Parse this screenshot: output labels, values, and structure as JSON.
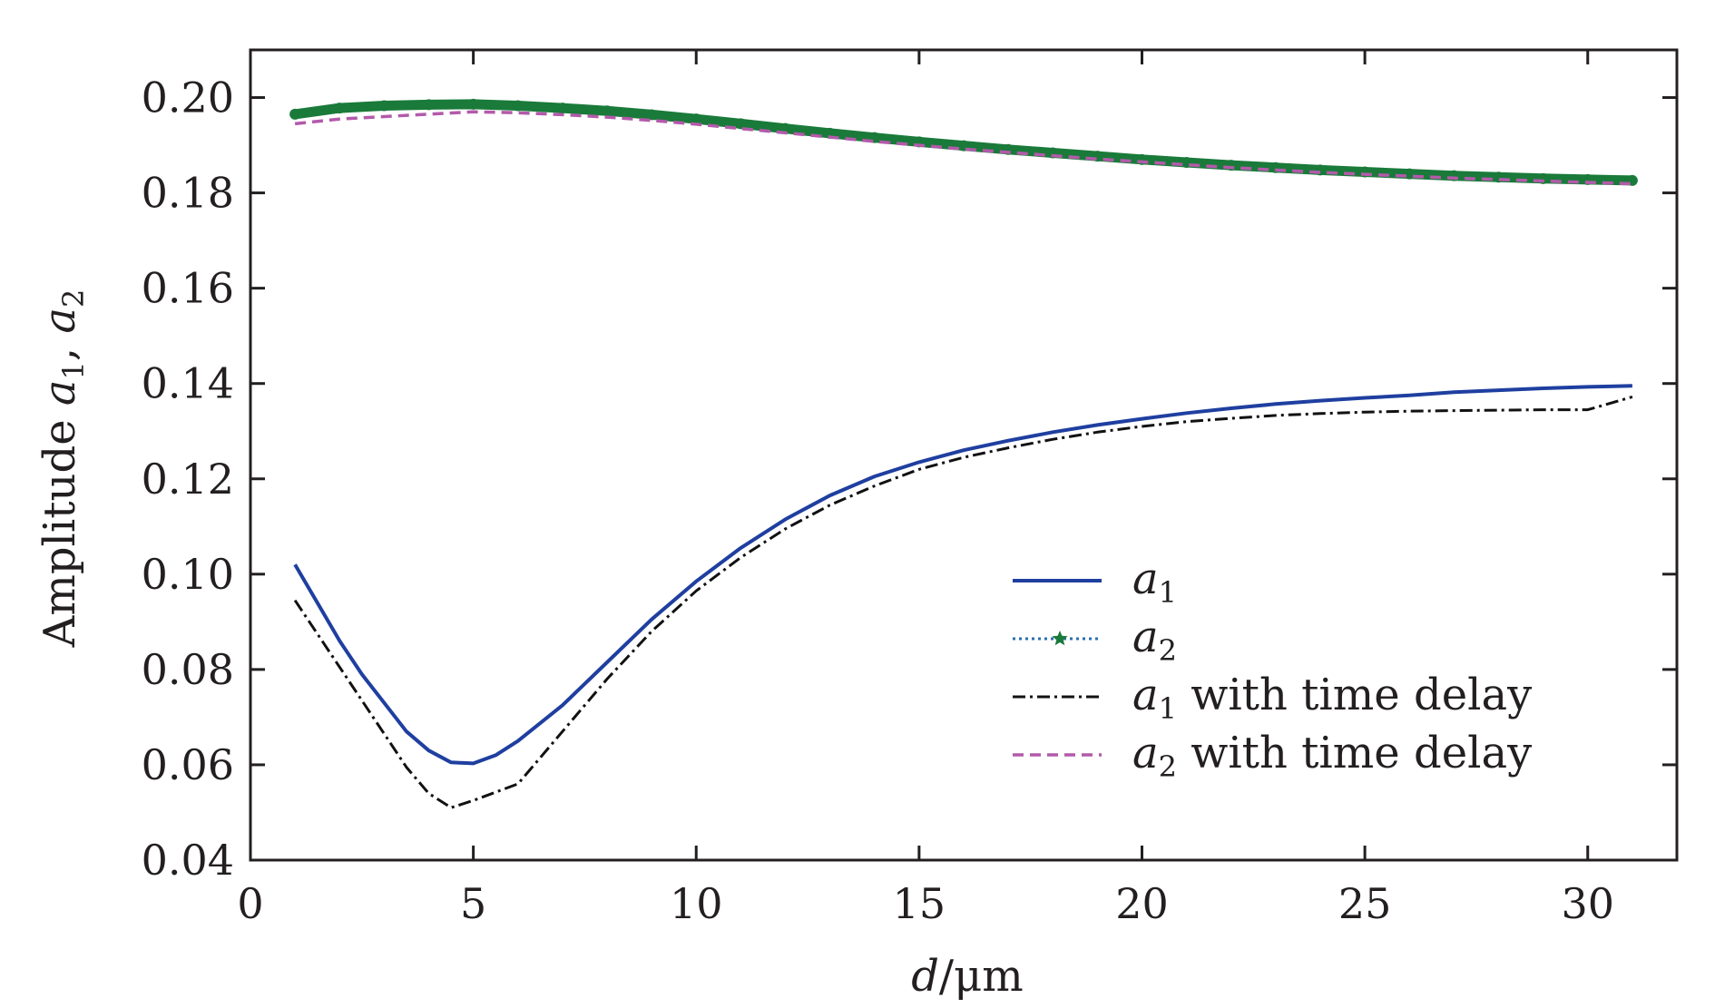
{
  "chart_data": {
    "type": "line",
    "xlabel": {
      "var": "d",
      "sep": "/",
      "unit": "μm"
    },
    "ylabel": {
      "prefix": "Amplitude ",
      "v1": "a",
      "s1": "1",
      "sep": ", ",
      "v2": "a",
      "s2": "2"
    },
    "xlim": [
      0,
      32
    ],
    "ylim": [
      0.04,
      0.21
    ],
    "xticks": [
      0,
      5,
      10,
      15,
      20,
      25,
      30
    ],
    "xtick_labels": [
      "0",
      "5",
      "10",
      "15",
      "20",
      "25",
      "30"
    ],
    "yticks": [
      0.04,
      0.06,
      0.08,
      0.1,
      0.12,
      0.14,
      0.16,
      0.18,
      0.2
    ],
    "ytick_labels": [
      "0.04",
      "0.06",
      "0.08",
      "0.10",
      "0.12",
      "0.14",
      "0.16",
      "0.18",
      "0.20"
    ],
    "grid": false,
    "legend_position": "lower-right",
    "series": [
      {
        "key": "a1",
        "legend": {
          "var": "a",
          "sub": "1",
          "suffix": ""
        },
        "color": "#1f3fa0",
        "style": "solid",
        "x": [
          1,
          1.5,
          2,
          2.5,
          3,
          3.5,
          4,
          4.5,
          5,
          5.5,
          6,
          7,
          8,
          9,
          10,
          11,
          12,
          13,
          14,
          15,
          16,
          17,
          18,
          19,
          20,
          21,
          22,
          23,
          24,
          25,
          26,
          27,
          28,
          29,
          30,
          31
        ],
        "y": [
          0.102,
          0.094,
          0.086,
          0.079,
          0.073,
          0.067,
          0.063,
          0.0605,
          0.0603,
          0.062,
          0.065,
          0.0725,
          0.0815,
          0.0905,
          0.0985,
          0.1055,
          0.1115,
          0.1165,
          0.1205,
          0.1235,
          0.126,
          0.128,
          0.1298,
          0.1313,
          0.1326,
          0.1338,
          0.1348,
          0.1357,
          0.1364,
          0.137,
          0.1375,
          0.1382,
          0.1386,
          0.139,
          0.1393,
          0.1395
        ]
      },
      {
        "key": "a2",
        "legend": {
          "var": "a",
          "sub": "2",
          "suffix": ""
        },
        "color": "#1a7a3a",
        "style": "dotted-star",
        "x": [
          1,
          2,
          3,
          4,
          5,
          6,
          7,
          8,
          9,
          10,
          11,
          12,
          13,
          14,
          15,
          16,
          17,
          18,
          19,
          20,
          21,
          22,
          23,
          24,
          25,
          26,
          27,
          28,
          29,
          30,
          31
        ],
        "y": [
          0.1965,
          0.1978,
          0.1983,
          0.1985,
          0.1986,
          0.1983,
          0.1978,
          0.1972,
          0.1964,
          0.1955,
          0.1945,
          0.1935,
          0.1925,
          0.1916,
          0.1907,
          0.1899,
          0.1891,
          0.1884,
          0.1877,
          0.187,
          0.1864,
          0.1858,
          0.1853,
          0.1848,
          0.1844,
          0.184,
          0.1836,
          0.1833,
          0.183,
          0.1828,
          0.1826
        ]
      },
      {
        "key": "a1_delay",
        "legend": {
          "var": "a",
          "sub": "1",
          "suffix": " with time delay"
        },
        "color": "#111111",
        "style": "dashdot",
        "x": [
          1,
          1.5,
          2,
          2.5,
          3,
          3.5,
          4,
          4.5,
          5,
          6,
          7,
          8,
          9,
          10,
          11,
          12,
          13,
          14,
          15,
          16,
          17,
          18,
          19,
          20,
          21,
          22,
          23,
          24,
          25,
          26,
          27,
          28,
          29,
          30,
          31
        ],
        "y": [
          0.0945,
          0.0875,
          0.0805,
          0.0735,
          0.0665,
          0.0595,
          0.054,
          0.051,
          0.0525,
          0.056,
          0.067,
          0.078,
          0.088,
          0.0965,
          0.1035,
          0.1095,
          0.1145,
          0.1185,
          0.122,
          0.1245,
          0.1265,
          0.1283,
          0.1298,
          0.131,
          0.132,
          0.1327,
          0.1333,
          0.1337,
          0.134,
          0.1342,
          0.1343,
          0.1344,
          0.1345,
          0.1345,
          0.1372
        ]
      },
      {
        "key": "a2_delay",
        "legend": {
          "var": "a",
          "sub": "2",
          "suffix": " with time delay"
        },
        "color": "#b35aaa",
        "style": "dashed",
        "x": [
          1,
          2,
          3,
          4,
          5,
          6,
          7,
          8,
          9,
          10,
          11,
          12,
          13,
          14,
          15,
          16,
          17,
          18,
          19,
          20,
          21,
          22,
          23,
          24,
          25,
          26,
          27,
          28,
          29,
          30,
          31
        ],
        "y": [
          0.1945,
          0.1955,
          0.196,
          0.1965,
          0.197,
          0.1968,
          0.1964,
          0.1959,
          0.1952,
          0.1944,
          0.1935,
          0.1926,
          0.1917,
          0.1908,
          0.19,
          0.1892,
          0.1885,
          0.1878,
          0.1871,
          0.1865,
          0.1859,
          0.1853,
          0.1848,
          0.1843,
          0.1839,
          0.1835,
          0.1831,
          0.1828,
          0.1825,
          0.1822,
          0.1819
        ]
      }
    ]
  }
}
